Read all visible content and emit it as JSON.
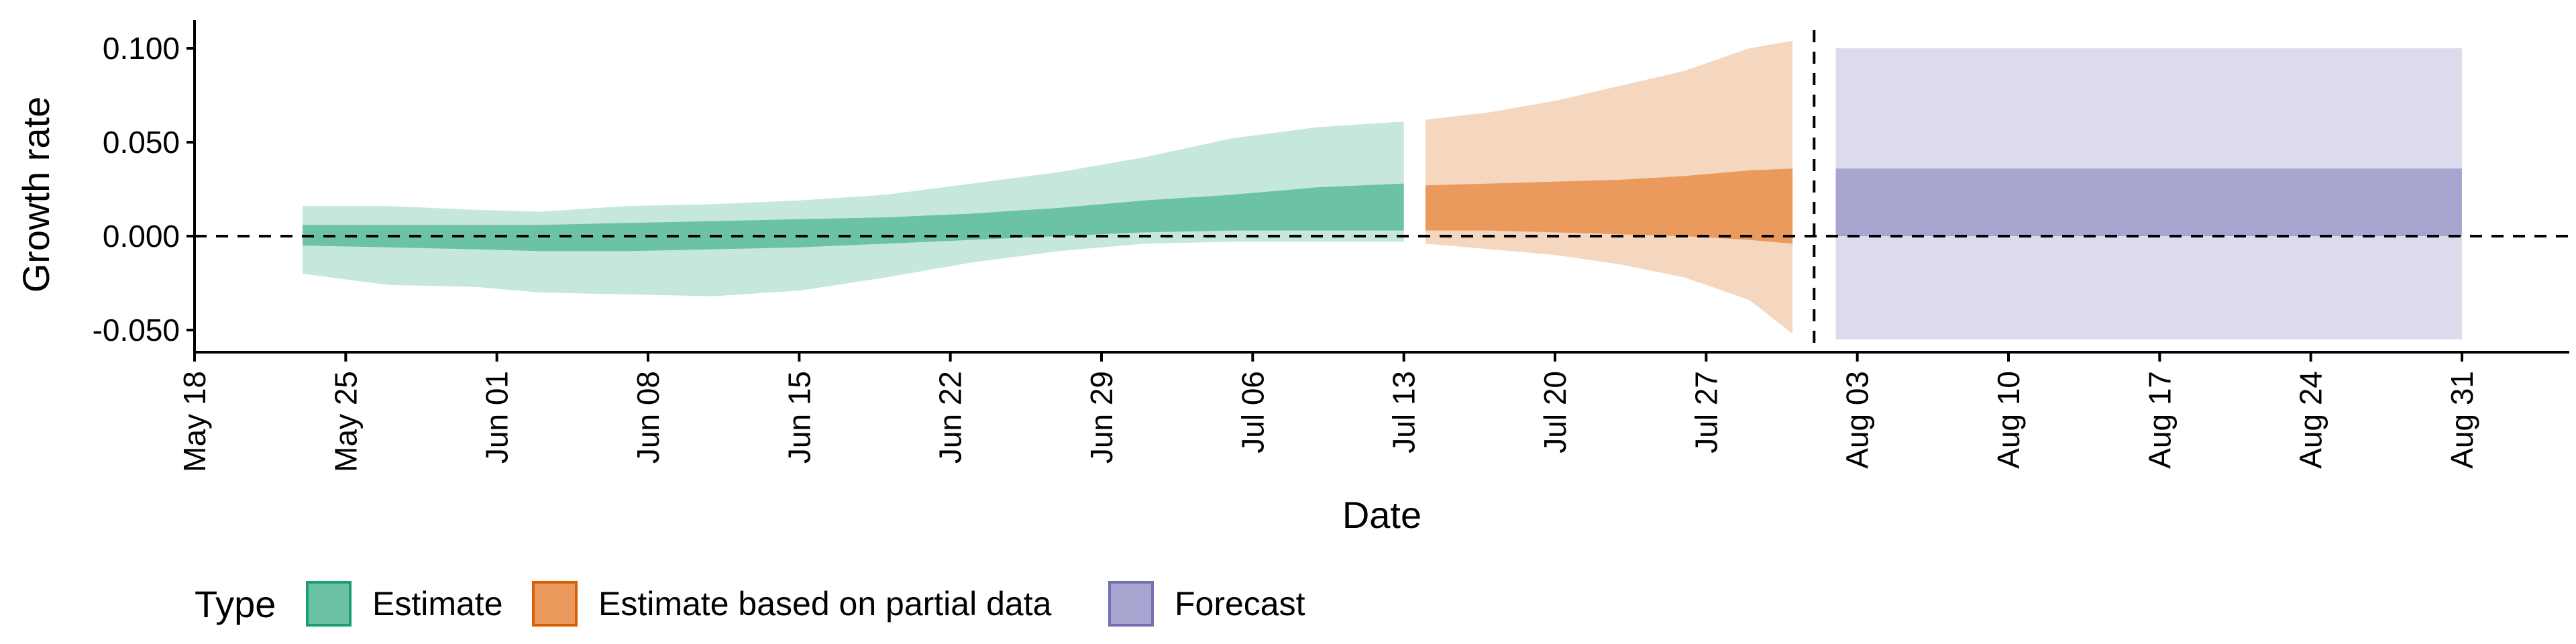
{
  "chart_data": {
    "type": "area",
    "xlabel": "Date",
    "ylabel": "Growth rate",
    "xlim": [
      "2020-05-18",
      "2020-09-03"
    ],
    "ylim": [
      -0.062,
      0.115
    ],
    "y_ticks": [
      {
        "value": 0.1,
        "label": "0.100"
      },
      {
        "value": 0.05,
        "label": "0.050"
      },
      {
        "value": 0.0,
        "label": "0.000"
      },
      {
        "value": -0.05,
        "label": "-0.050"
      }
    ],
    "x_ticks": [
      {
        "value": "2020-05-18",
        "label": "May 18"
      },
      {
        "value": "2020-05-25",
        "label": "May 25"
      },
      {
        "value": "2020-06-01",
        "label": "Jun 01"
      },
      {
        "value": "2020-06-08",
        "label": "Jun 08"
      },
      {
        "value": "2020-06-15",
        "label": "Jun 15"
      },
      {
        "value": "2020-06-22",
        "label": "Jun 22"
      },
      {
        "value": "2020-06-29",
        "label": "Jun 29"
      },
      {
        "value": "2020-07-06",
        "label": "Jul 06"
      },
      {
        "value": "2020-07-13",
        "label": "Jul 13"
      },
      {
        "value": "2020-07-20",
        "label": "Jul 20"
      },
      {
        "value": "2020-07-27",
        "label": "Jul 27"
      },
      {
        "value": "2020-08-03",
        "label": "Aug 03"
      },
      {
        "value": "2020-08-10",
        "label": "Aug 10"
      },
      {
        "value": "2020-08-17",
        "label": "Aug 17"
      },
      {
        "value": "2020-08-24",
        "label": "Aug 24"
      },
      {
        "value": "2020-08-31",
        "label": "Aug 31"
      }
    ],
    "reference_lines": {
      "horizontal_y": 0.0,
      "vertical_x": "2020-08-01"
    },
    "legend": {
      "title": "Type",
      "position": "bottom-left",
      "entries": [
        {
          "label": "Estimate",
          "fill": "#6CC3A4",
          "border": "#1B9E77"
        },
        {
          "label": "Estimate based on partial data",
          "fill": "#E99A5C",
          "border": "#D95F02"
        },
        {
          "label": "Forecast",
          "fill": "#A8A5D1",
          "border": "#7570B3"
        }
      ]
    },
    "series": [
      {
        "type_label": "Estimate",
        "outer_color": "#C6E7DB",
        "inner_color": "#6CC3A4",
        "points": [
          {
            "date": "2020-05-23",
            "lo90": -0.02,
            "lo50": -0.005,
            "hi50": 0.006,
            "hi90": 0.016
          },
          {
            "date": "2020-05-27",
            "lo90": -0.026,
            "lo50": -0.006,
            "hi50": 0.006,
            "hi90": 0.016
          },
          {
            "date": "2020-05-31",
            "lo90": -0.027,
            "lo50": -0.007,
            "hi50": 0.006,
            "hi90": 0.014
          },
          {
            "date": "2020-06-03",
            "lo90": -0.03,
            "lo50": -0.008,
            "hi50": 0.006,
            "hi90": 0.013
          },
          {
            "date": "2020-06-07",
            "lo90": -0.031,
            "lo50": -0.008,
            "hi50": 0.007,
            "hi90": 0.016
          },
          {
            "date": "2020-06-11",
            "lo90": -0.032,
            "lo50": -0.007,
            "hi50": 0.008,
            "hi90": 0.017
          },
          {
            "date": "2020-06-15",
            "lo90": -0.029,
            "lo50": -0.006,
            "hi50": 0.009,
            "hi90": 0.019
          },
          {
            "date": "2020-06-19",
            "lo90": -0.022,
            "lo50": -0.004,
            "hi50": 0.01,
            "hi90": 0.022
          },
          {
            "date": "2020-06-23",
            "lo90": -0.014,
            "lo50": -0.002,
            "hi50": 0.012,
            "hi90": 0.028
          },
          {
            "date": "2020-06-27",
            "lo90": -0.008,
            "lo50": 0.0,
            "hi50": 0.015,
            "hi90": 0.034
          },
          {
            "date": "2020-07-01",
            "lo90": -0.004,
            "lo50": 0.002,
            "hi50": 0.019,
            "hi90": 0.042
          },
          {
            "date": "2020-07-05",
            "lo90": -0.003,
            "lo50": 0.003,
            "hi50": 0.022,
            "hi90": 0.052
          },
          {
            "date": "2020-07-09",
            "lo90": -0.003,
            "lo50": 0.003,
            "hi50": 0.026,
            "hi90": 0.058
          },
          {
            "date": "2020-07-13",
            "lo90": -0.003,
            "lo50": 0.003,
            "hi50": 0.028,
            "hi90": 0.061
          }
        ]
      },
      {
        "type_label": "Estimate based on partial data",
        "outer_color": "#F5D7C0",
        "inner_color": "#E99A5C",
        "points": [
          {
            "date": "2020-07-14",
            "lo90": -0.004,
            "lo50": 0.003,
            "hi50": 0.027,
            "hi90": 0.062
          },
          {
            "date": "2020-07-17",
            "lo90": -0.007,
            "lo50": 0.003,
            "hi50": 0.028,
            "hi90": 0.066
          },
          {
            "date": "2020-07-20",
            "lo90": -0.01,
            "lo50": 0.002,
            "hi50": 0.029,
            "hi90": 0.072
          },
          {
            "date": "2020-07-23",
            "lo90": -0.015,
            "lo50": 0.001,
            "hi50": 0.03,
            "hi90": 0.08
          },
          {
            "date": "2020-07-26",
            "lo90": -0.022,
            "lo50": 0.0,
            "hi50": 0.032,
            "hi90": 0.088
          },
          {
            "date": "2020-07-29",
            "lo90": -0.034,
            "lo50": -0.002,
            "hi50": 0.035,
            "hi90": 0.1
          },
          {
            "date": "2020-07-31",
            "lo90": -0.052,
            "lo50": -0.004,
            "hi50": 0.036,
            "hi90": 0.104
          }
        ]
      },
      {
        "type_label": "Forecast",
        "outer_color": "#DCDBEC",
        "inner_color": "#A8A5D1",
        "points": [
          {
            "date": "2020-08-02",
            "lo90": -0.055,
            "lo50": 0.0,
            "hi50": 0.036,
            "hi90": 0.1
          },
          {
            "date": "2020-08-31",
            "lo90": -0.055,
            "lo50": 0.0,
            "hi50": 0.036,
            "hi90": 0.1
          }
        ]
      }
    ]
  }
}
